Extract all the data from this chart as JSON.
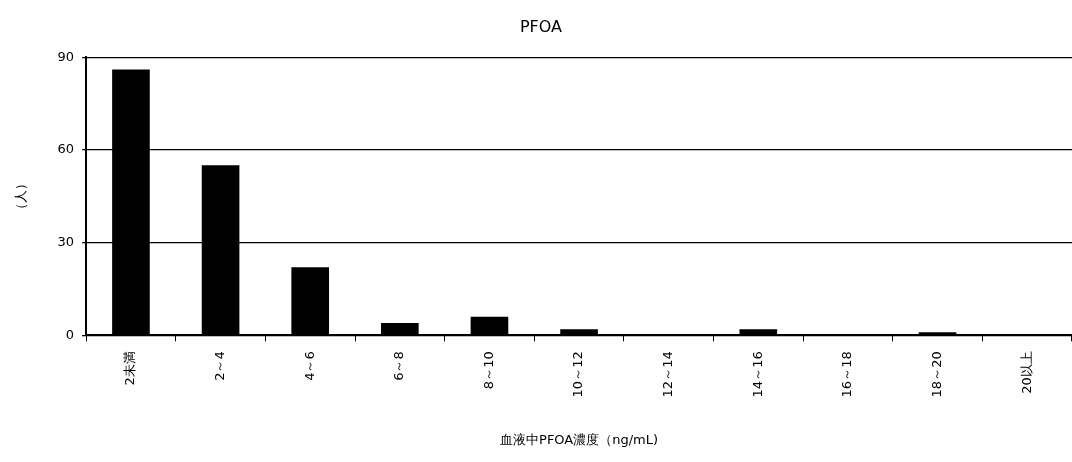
{
  "chart_data": {
    "type": "bar",
    "title": "PFOA",
    "xlabel": "血液中PFOA濃度（ng/mL)",
    "ylabel": "（人）",
    "categories": [
      "2未満",
      "2～4",
      "4～6",
      "6～8",
      "8～10",
      "10～12",
      "12～14",
      "14～16",
      "16～18",
      "18～20",
      "20以上"
    ],
    "values": [
      86,
      55,
      22,
      4,
      6,
      2,
      0,
      2,
      0,
      1,
      0
    ],
    "color": "#000000",
    "ylim": [
      0,
      90
    ],
    "yticks": [
      0,
      30,
      60,
      90
    ],
    "grid": "y",
    "legend": false
  }
}
